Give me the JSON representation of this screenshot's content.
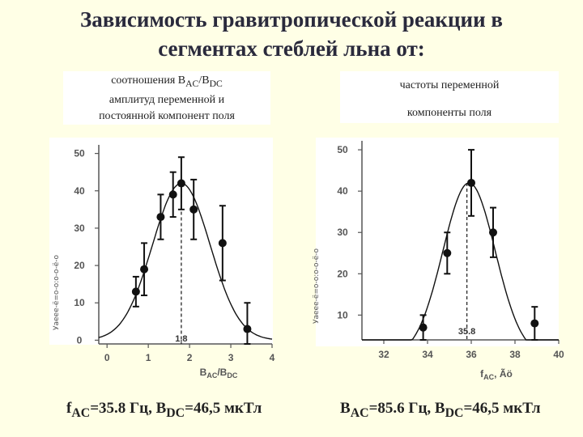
{
  "title": {
    "line1": "Зависимость гравитропической реакции в",
    "line2": "сегментах стеблей льна от:"
  },
  "left_panel": {
    "caption_line1_pre": "соотношения B",
    "caption_line1_sub1": "AC",
    "caption_line1_mid": "/B",
    "caption_line1_sub2": "DC",
    "caption_line2": "амплитуд переменной и",
    "caption_line3": "постоянной компонент поля",
    "footer_pre": "f",
    "footer_sub1": "AC",
    "footer_mid": "=35.8 Гц, B",
    "footer_sub2": "DC",
    "footer_post": "=46,5 мкТл"
  },
  "right_panel": {
    "caption_line1": "частоты переменной",
    "caption_line2": "компоненты поля",
    "footer_pre": "B",
    "footer_sub1": "AC",
    "footer_mid": "=85.6 Гц, B",
    "footer_sub2": "DC",
    "footer_post": "=46,5 мкТл"
  },
  "chart_data": [
    {
      "type": "scatter",
      "xlabel": "BAC/BDC",
      "ylabel": "Уаеее-ё=о-о:о-о-ё-о",
      "xlim": [
        -0.2,
        4
      ],
      "ylim": [
        -1,
        51
      ],
      "x_ticks": [
        0,
        1,
        2,
        3,
        4
      ],
      "y_ticks": [
        0,
        10,
        20,
        30,
        40,
        50
      ],
      "peak_label": "1.8",
      "peak_x": 1.8,
      "grid": false,
      "points": [
        {
          "x": 0.7,
          "y": 13,
          "err": 4
        },
        {
          "x": 0.9,
          "y": 19,
          "err": 7
        },
        {
          "x": 1.3,
          "y": 33,
          "err": 6
        },
        {
          "x": 1.6,
          "y": 39,
          "err": 6
        },
        {
          "x": 1.8,
          "y": 42,
          "err": 7
        },
        {
          "x": 2.1,
          "y": 35,
          "err": 8
        },
        {
          "x": 2.8,
          "y": 26,
          "err": 10
        },
        {
          "x": 3.4,
          "y": 3,
          "err": 7
        }
      ],
      "fit": {
        "a": 42,
        "mu": 1.8,
        "sigma": 0.7
      }
    },
    {
      "type": "scatter",
      "xlabel": "fAC, Ãö",
      "ylabel": "Уаеее-ё=о-о:о-о-ё-о",
      "xlim": [
        31,
        40
      ],
      "ylim": [
        4,
        51
      ],
      "x_ticks": [
        32,
        34,
        36,
        38,
        40
      ],
      "y_ticks": [
        10,
        20,
        30,
        40,
        50
      ],
      "peak_label": "35.8",
      "peak_x": 35.8,
      "grid": false,
      "points": [
        {
          "x": 33.8,
          "y": 7,
          "err": 3
        },
        {
          "x": 34.9,
          "y": 25,
          "err": 5
        },
        {
          "x": 36,
          "y": 42,
          "err": 8
        },
        {
          "x": 37,
          "y": 30,
          "err": 6
        },
        {
          "x": 38.9,
          "y": 8,
          "err": 4
        }
      ],
      "fit": {
        "a": 42,
        "mu": 35.9,
        "sigma": 1.2
      }
    }
  ]
}
